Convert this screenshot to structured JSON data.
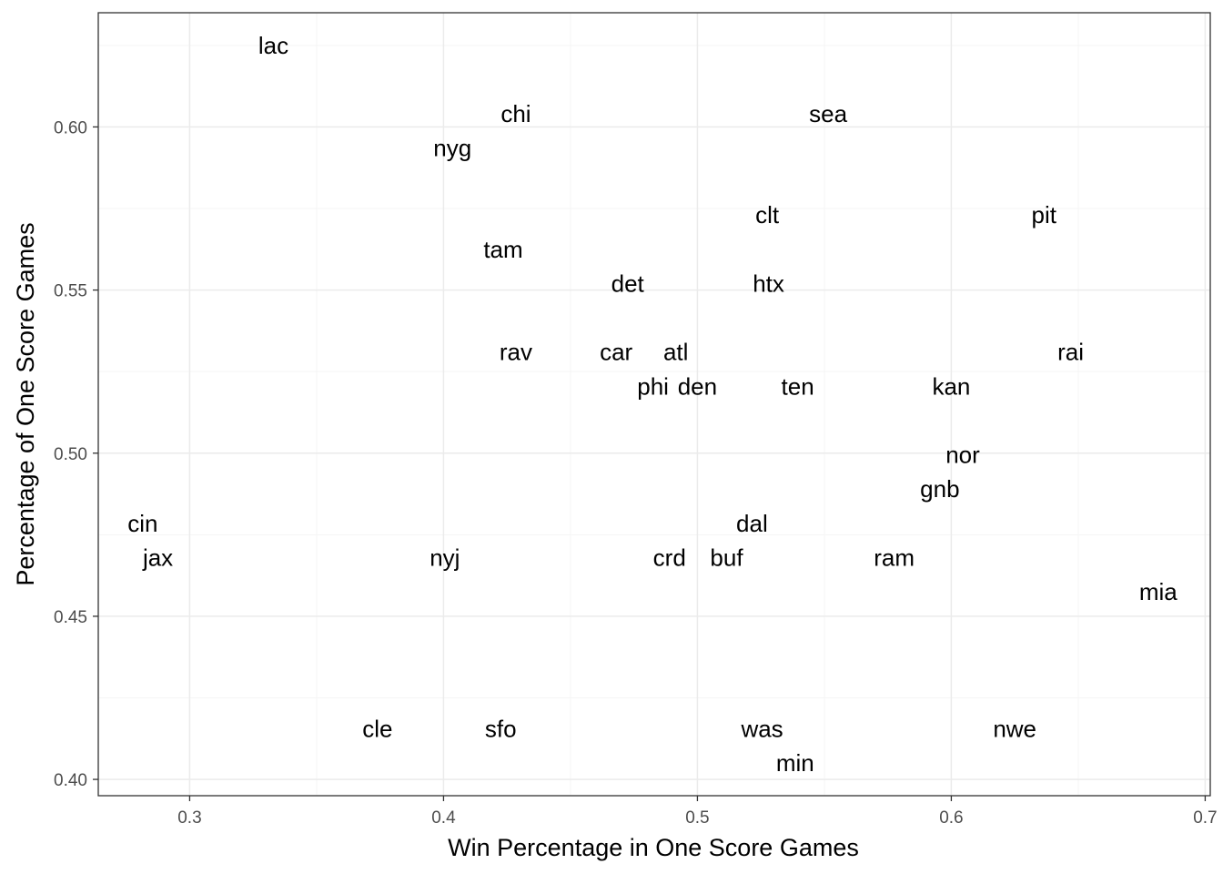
{
  "chart_data": {
    "type": "scatter",
    "title": "",
    "xlabel": "Win Percentage in One Score Games",
    "ylabel": "Percentage of One Score Games",
    "xlim": [
      0.264,
      0.702
    ],
    "ylim": [
      0.395,
      0.635
    ],
    "x_ticks": [
      0.3,
      0.4,
      0.5,
      0.6,
      0.7
    ],
    "x_tick_labels": [
      "0.3",
      "0.4",
      "0.5",
      "0.6",
      "0.7"
    ],
    "y_ticks": [
      0.4,
      0.45,
      0.5,
      0.55,
      0.6
    ],
    "y_tick_labels": [
      "0.40",
      "0.45",
      "0.50",
      "0.55",
      "0.60"
    ],
    "grid": true,
    "points": [
      {
        "label": "lac",
        "x": 0.333,
        "y": 0.625
      },
      {
        "label": "chi",
        "x": 0.4285,
        "y": 0.604
      },
      {
        "label": "sea",
        "x": 0.5515,
        "y": 0.604
      },
      {
        "label": "nyg",
        "x": 0.4035,
        "y": 0.5935
      },
      {
        "label": "clt",
        "x": 0.5275,
        "y": 0.573
      },
      {
        "label": "pit",
        "x": 0.6365,
        "y": 0.573
      },
      {
        "label": "tam",
        "x": 0.4235,
        "y": 0.5625
      },
      {
        "label": "det",
        "x": 0.4725,
        "y": 0.552
      },
      {
        "label": "htx",
        "x": 0.528,
        "y": 0.552
      },
      {
        "label": "rav",
        "x": 0.4285,
        "y": 0.531
      },
      {
        "label": "car",
        "x": 0.468,
        "y": 0.531
      },
      {
        "label": "atl",
        "x": 0.4915,
        "y": 0.531
      },
      {
        "label": "rai",
        "x": 0.647,
        "y": 0.531
      },
      {
        "label": "phi",
        "x": 0.4825,
        "y": 0.5205
      },
      {
        "label": "den",
        "x": 0.5,
        "y": 0.5205
      },
      {
        "label": "ten",
        "x": 0.5395,
        "y": 0.5205
      },
      {
        "label": "kan",
        "x": 0.6,
        "y": 0.5205
      },
      {
        "label": "nor",
        "x": 0.6045,
        "y": 0.4995
      },
      {
        "label": "gnb",
        "x": 0.5955,
        "y": 0.489
      },
      {
        "label": "cin",
        "x": 0.2815,
        "y": 0.4785
      },
      {
        "label": "dal",
        "x": 0.5215,
        "y": 0.4785
      },
      {
        "label": "jax",
        "x": 0.2875,
        "y": 0.468
      },
      {
        "label": "nyj",
        "x": 0.4005,
        "y": 0.468
      },
      {
        "label": "crd",
        "x": 0.489,
        "y": 0.468
      },
      {
        "label": "buf",
        "x": 0.5115,
        "y": 0.468
      },
      {
        "label": "ram",
        "x": 0.5775,
        "y": 0.468
      },
      {
        "label": "mia",
        "x": 0.6815,
        "y": 0.4575
      },
      {
        "label": "cle",
        "x": 0.374,
        "y": 0.4155
      },
      {
        "label": "sfo",
        "x": 0.4225,
        "y": 0.4155
      },
      {
        "label": "was",
        "x": 0.5255,
        "y": 0.4155
      },
      {
        "label": "nwe",
        "x": 0.625,
        "y": 0.4155
      },
      {
        "label": "min",
        "x": 0.5385,
        "y": 0.405
      }
    ]
  },
  "colors": {
    "panel_border": "#333333",
    "grid_major": "#ebebeb",
    "grid_minor": "#f5f5f5",
    "tick": "#333333",
    "text": "#000000"
  }
}
